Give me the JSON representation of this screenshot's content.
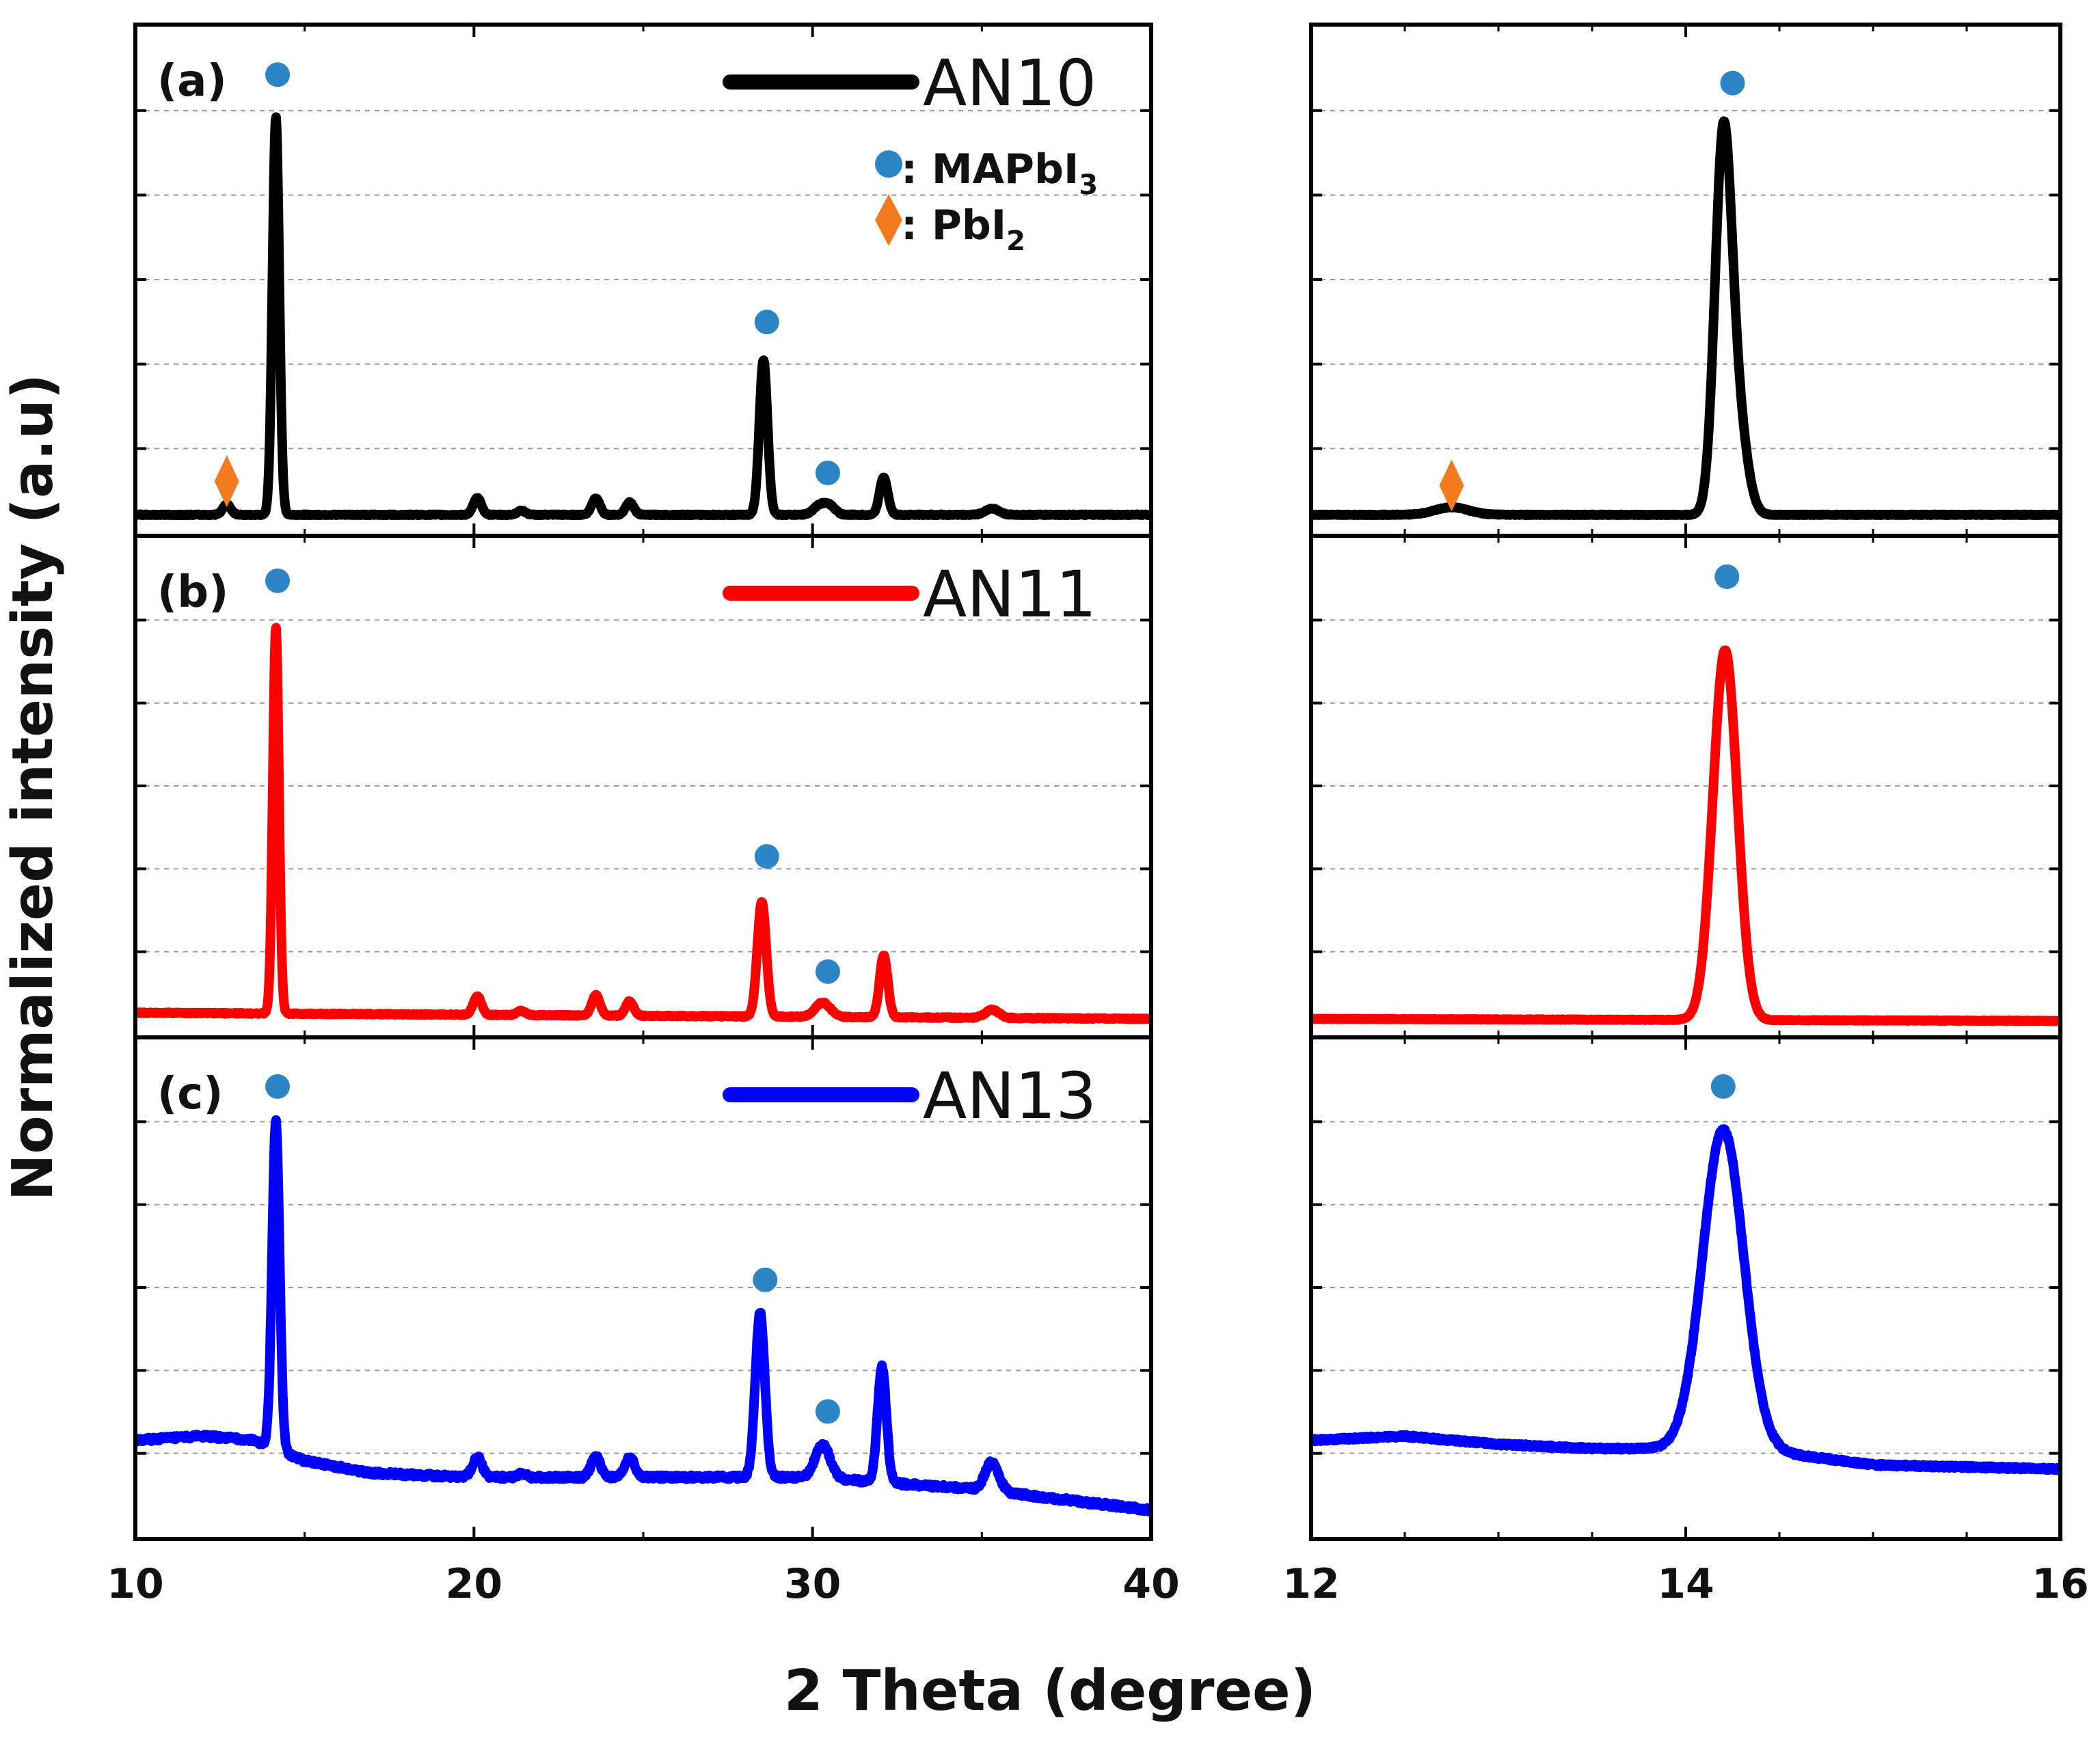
{
  "chart_data": {
    "type": "line",
    "xlabel": "2 Theta (degree)",
    "ylabel": "Normalized intensity (a.u)",
    "grid": "dashed horizontal",
    "legend_markers": {
      "mapbi3": {
        "symbol": "●",
        "text": ": MAPbI",
        "sub": "3",
        "color": "#2c86c6"
      },
      "pbi2": {
        "symbol": "◆",
        "text": ": PbI",
        "sub": "2",
        "color": "#f47a20"
      }
    },
    "panels_left": {
      "xlim": [
        10,
        40
      ],
      "xticks": [
        10,
        20,
        30,
        40
      ],
      "ylim": [
        0,
        100
      ]
    },
    "panels_right": {
      "xlim": [
        12,
        16
      ],
      "xticks": [
        12,
        14,
        16
      ],
      "ylim": [
        0,
        100
      ]
    },
    "series": [
      {
        "id": "a",
        "panel_label": "(a)",
        "name": "AN10",
        "color": "#000000",
        "wide": {
          "baseline": 5,
          "noise": 0.25,
          "peaks": [
            {
              "x": 12.7,
              "h": 2.5,
              "w": 0.12
            },
            {
              "x": 14.15,
              "h": 95,
              "w": 0.1
            },
            {
              "x": 20.1,
              "h": 4,
              "w": 0.12
            },
            {
              "x": 21.4,
              "h": 1,
              "w": 0.12
            },
            {
              "x": 23.6,
              "h": 4,
              "w": 0.12
            },
            {
              "x": 24.6,
              "h": 3,
              "w": 0.12
            },
            {
              "x": 28.55,
              "h": 37,
              "w": 0.12
            },
            {
              "x": 30.25,
              "h": 2.5,
              "w": 0.2
            },
            {
              "x": 30.55,
              "h": 1.5,
              "w": 0.15
            },
            {
              "x": 32.1,
              "h": 9,
              "w": 0.12
            },
            {
              "x": 35.3,
              "h": 1.5,
              "w": 0.2
            }
          ],
          "slope": 0,
          "markers": [
            {
              "type": "mapbi3",
              "x": 14.2,
              "y": 110
            },
            {
              "type": "pbi2",
              "x": 12.7,
              "y": 13
            },
            {
              "type": "mapbi3",
              "x": 28.65,
              "y": 51
            },
            {
              "type": "mapbi3",
              "x": 30.45,
              "y": 15
            }
          ]
        },
        "zoom": {
          "baseline": 5,
          "noise": 0.2,
          "peaks": [
            {
              "x": 12.75,
              "h": 1.8,
              "w": 0.09
            },
            {
              "x": 14.2,
              "h": 88,
              "w": 0.045
            },
            {
              "x": 14.28,
              "h": 20,
              "w": 0.05
            }
          ],
          "slope": 0,
          "markers": [
            {
              "type": "mapbi3",
              "x": 14.25,
              "y": 108
            },
            {
              "type": "pbi2",
              "x": 12.75,
              "y": 12
            }
          ]
        }
      },
      {
        "id": "b",
        "panel_label": "(b)",
        "name": "AN11",
        "color": "#ff0000",
        "wide": {
          "baseline": 6,
          "noise": 0.3,
          "peaks": [
            {
              "x": 14.15,
              "h": 94,
              "w": 0.09
            },
            {
              "x": 20.1,
              "h": 4.5,
              "w": 0.12
            },
            {
              "x": 21.4,
              "h": 1,
              "w": 0.12
            },
            {
              "x": 23.6,
              "h": 5,
              "w": 0.12
            },
            {
              "x": 24.6,
              "h": 3.5,
              "w": 0.12
            },
            {
              "x": 28.5,
              "h": 28,
              "w": 0.13
            },
            {
              "x": 30.3,
              "h": 3.5,
              "w": 0.22
            },
            {
              "x": 32.1,
              "h": 15,
              "w": 0.12
            },
            {
              "x": 35.3,
              "h": 2,
              "w": 0.2
            }
          ],
          "slope": -1.5,
          "markers": [
            {
              "type": "mapbi3",
              "x": 14.2,
              "y": 111
            },
            {
              "type": "mapbi3",
              "x": 28.65,
              "y": 44
            },
            {
              "type": "mapbi3",
              "x": 30.45,
              "y": 16
            }
          ]
        },
        "zoom": {
          "baseline": 4.5,
          "noise": 0.2,
          "peaks": [
            {
              "x": 14.21,
              "h": 90,
              "w": 0.065
            }
          ],
          "slope": -0.5,
          "markers": [
            {
              "type": "mapbi3",
              "x": 14.22,
              "y": 112
            }
          ]
        }
      },
      {
        "id": "c",
        "panel_label": "(c)",
        "name": "AN13",
        "color": "#0000ff",
        "wide": {
          "baseline": 24,
          "noise": 1,
          "peaks": [
            {
              "x": 14.15,
              "h": 80,
              "w": 0.11
            },
            {
              "x": 20.1,
              "h": 5,
              "w": 0.14
            },
            {
              "x": 21.4,
              "h": 1,
              "w": 0.12
            },
            {
              "x": 23.6,
              "h": 5,
              "w": 0.14
            },
            {
              "x": 24.6,
              "h": 5,
              "w": 0.14
            },
            {
              "x": 28.45,
              "h": 40,
              "w": 0.14
            },
            {
              "x": 30.3,
              "h": 8,
              "w": 0.22
            },
            {
              "x": 32.05,
              "h": 28,
              "w": 0.13
            },
            {
              "x": 35.3,
              "h": 7,
              "w": 0.2
            }
          ],
          "slope": 0,
          "profile": [
            [
              10,
              24
            ],
            [
              12,
              25
            ],
            [
              13.5,
              24
            ],
            [
              15,
              19
            ],
            [
              17,
              16
            ],
            [
              20,
              15
            ],
            [
              25,
              15
            ],
            [
              30,
              15
            ],
            [
              35,
              12
            ],
            [
              37,
              10
            ],
            [
              40,
              7
            ]
          ],
          "markers": [
            {
              "type": "mapbi3",
              "x": 14.2,
              "y": 110
            },
            {
              "type": "mapbi3",
              "x": 28.6,
              "y": 63
            },
            {
              "type": "mapbi3",
              "x": 30.45,
              "y": 31
            }
          ]
        },
        "zoom": {
          "baseline": 22,
          "noise": 0.7,
          "peaks": [
            {
              "x": 14.2,
              "h": 78,
              "w": 0.11
            }
          ],
          "slope": 0,
          "profile": [
            [
              12,
              24
            ],
            [
              12.5,
              25
            ],
            [
              13,
              23
            ],
            [
              13.5,
              22
            ],
            [
              14,
              22
            ],
            [
              14.5,
              21
            ],
            [
              15,
              18
            ],
            [
              16,
              17
            ]
          ],
          "markers": [
            {
              "type": "mapbi3",
              "x": 14.2,
              "y": 110
            }
          ]
        }
      }
    ]
  }
}
